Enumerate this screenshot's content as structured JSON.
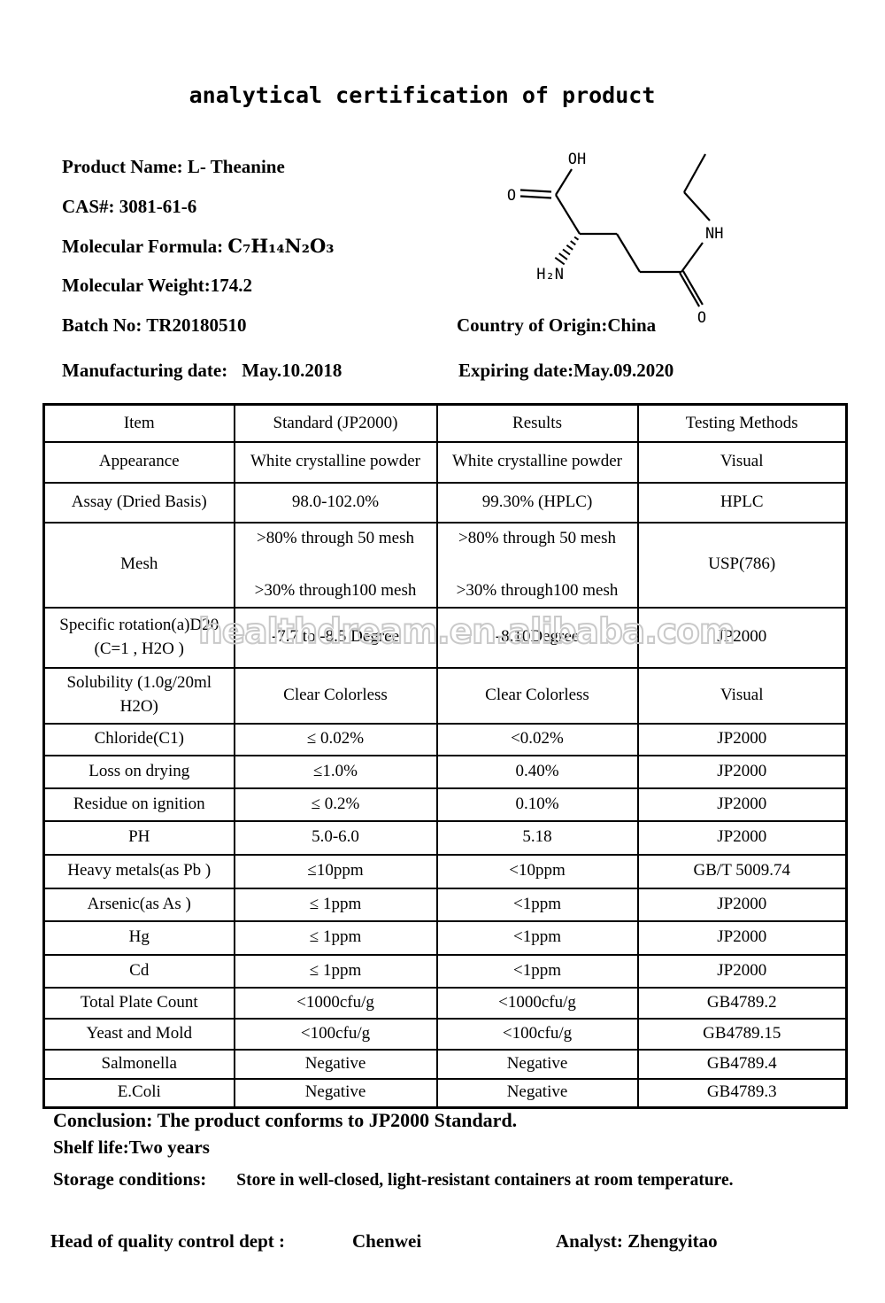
{
  "title": "analytical certification of product",
  "watermark": "healthdream.en.alibaba.com",
  "product": {
    "name_line": "Product Name: L- Theanine",
    "cas_line": "CAS#: 3081-61-6",
    "formula_label": "Molecular Formula: ",
    "formula_value": "C₇H₁₄N₂O₃",
    "weight_line": "Molecular Weight:174.2",
    "batch_line": "Batch No: TR20180510",
    "origin_line": "Country of Origin:China",
    "mfg_label": "Manufacturing date:",
    "mfg_value": "May.10.2018",
    "exp_line": "Expiring date:May.09.2020"
  },
  "molecule": {
    "oh": "OH",
    "o_acid": "O",
    "h2n": "H₂N",
    "nh": "NH",
    "o_amide": "O"
  },
  "table": {
    "headers": [
      "Item",
      "Standard (JP2000)",
      "Results",
      "Testing Methods"
    ],
    "rows": [
      {
        "item": [
          "Appearance"
        ],
        "standard": [
          "White crystalline powder"
        ],
        "results": [
          "White crystalline powder"
        ],
        "method": [
          "Visual"
        ]
      },
      {
        "item": [
          "Assay (Dried Basis)"
        ],
        "standard": [
          "98.0-102.0%"
        ],
        "results": [
          "99.30% (HPLC)"
        ],
        "method": [
          "HPLC"
        ]
      },
      {
        "item": [
          "Mesh"
        ],
        "standard": [
          ">80% through 50 mesh",
          ">30% through100 mesh"
        ],
        "results": [
          ">80% through 50 mesh",
          ">30% through100 mesh"
        ],
        "method": [
          "USP(786)"
        ]
      },
      {
        "item": [
          "Specific rotation(a)D20",
          "(C=1 , H2O )"
        ],
        "standard": [
          "-7.7 to -8.5 Degree"
        ],
        "results": [
          "-8.10Degree"
        ],
        "method": [
          "JP2000"
        ]
      },
      {
        "item": [
          "Solubility (1.0g/20ml",
          "H2O)"
        ],
        "standard": [
          "Clear Colorless"
        ],
        "results": [
          "Clear Colorless"
        ],
        "method": [
          "Visual"
        ]
      },
      {
        "item": [
          "Chloride(C1)"
        ],
        "standard": [
          "≤ 0.02%"
        ],
        "results": [
          "<0.02%"
        ],
        "method": [
          "JP2000"
        ]
      },
      {
        "item": [
          "Loss on drying"
        ],
        "standard": [
          "≤1.0%"
        ],
        "results": [
          "0.40%"
        ],
        "method": [
          "JP2000"
        ]
      },
      {
        "item": [
          "Residue on ignition"
        ],
        "standard": [
          "≤ 0.2%"
        ],
        "results": [
          "0.10%"
        ],
        "method": [
          "JP2000"
        ]
      },
      {
        "item": [
          "PH"
        ],
        "standard": [
          "5.0-6.0"
        ],
        "results": [
          "5.18"
        ],
        "method": [
          "JP2000"
        ]
      },
      {
        "item": [
          "Heavy metals(as Pb )"
        ],
        "standard": [
          "≤10ppm"
        ],
        "results": [
          "<10ppm"
        ],
        "method": [
          "GB/T 5009.74"
        ]
      },
      {
        "item": [
          "Arsenic(as As )"
        ],
        "standard": [
          "≤ 1ppm"
        ],
        "results": [
          "<1ppm"
        ],
        "method": [
          "JP2000"
        ]
      },
      {
        "item": [
          "Hg"
        ],
        "standard": [
          "≤ 1ppm"
        ],
        "results": [
          "<1ppm"
        ],
        "method": [
          "JP2000"
        ]
      },
      {
        "item": [
          "Cd"
        ],
        "standard": [
          "≤ 1ppm"
        ],
        "results": [
          "<1ppm"
        ],
        "method": [
          "JP2000"
        ]
      },
      {
        "item": [
          "Total Plate Count"
        ],
        "standard": [
          "<1000cfu/g"
        ],
        "results": [
          "<1000cfu/g"
        ],
        "method": [
          "GB4789.2"
        ]
      },
      {
        "item": [
          "Yeast and Mold"
        ],
        "standard": [
          "<100cfu/g"
        ],
        "results": [
          "<100cfu/g"
        ],
        "method": [
          "GB4789.15"
        ]
      },
      {
        "item": [
          "Salmonella"
        ],
        "standard": [
          "Negative"
        ],
        "results": [
          "Negative"
        ],
        "method": [
          "GB4789.4"
        ]
      },
      {
        "item": [
          "E.Coli"
        ],
        "standard": [
          "Negative"
        ],
        "results": [
          "Negative"
        ],
        "method": [
          "GB4789.3"
        ]
      }
    ]
  },
  "footer": {
    "conclusion": "Conclusion: The product conforms to JP2000 Standard.",
    "shelf_life": "Shelf life:Two years",
    "storage_label": "Storage conditions:",
    "storage_value": "Store in well-closed, light-resistant containers at room temperature.",
    "qc_label": "Head of quality control dept :",
    "qc_name": "Chenwei",
    "analyst_line": "Analyst: Zhengyitao"
  }
}
